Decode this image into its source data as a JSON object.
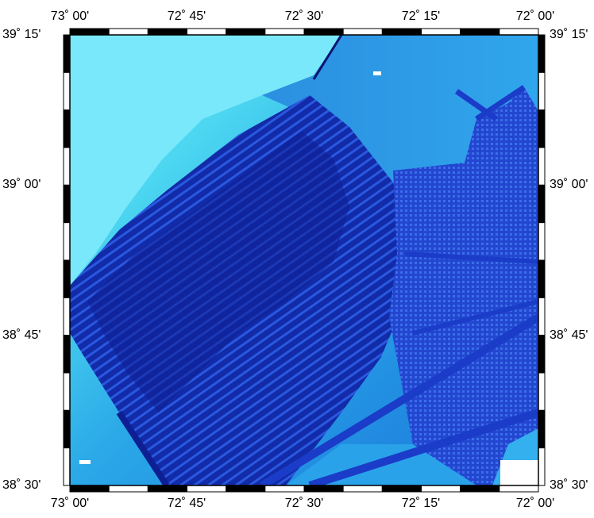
{
  "map": {
    "lon_labels": [
      "73˚ 00'",
      "72˚ 45'",
      "72˚ 30'",
      "72˚ 15'",
      "72˚ 00'"
    ],
    "lat_labels": [
      "39˚ 15'",
      "39˚ 00'",
      "38˚ 45'",
      "38˚ 30'"
    ],
    "colors": {
      "shelf_shallow": "#5ee0f0",
      "shelf_mid": "#27b8e6",
      "deep_water": "#2a8fd8",
      "survey_dark": "#0c1a8c",
      "survey_mid": "#1730c8",
      "survey_grid": "#1c4ee0",
      "frame": "#000000"
    }
  }
}
